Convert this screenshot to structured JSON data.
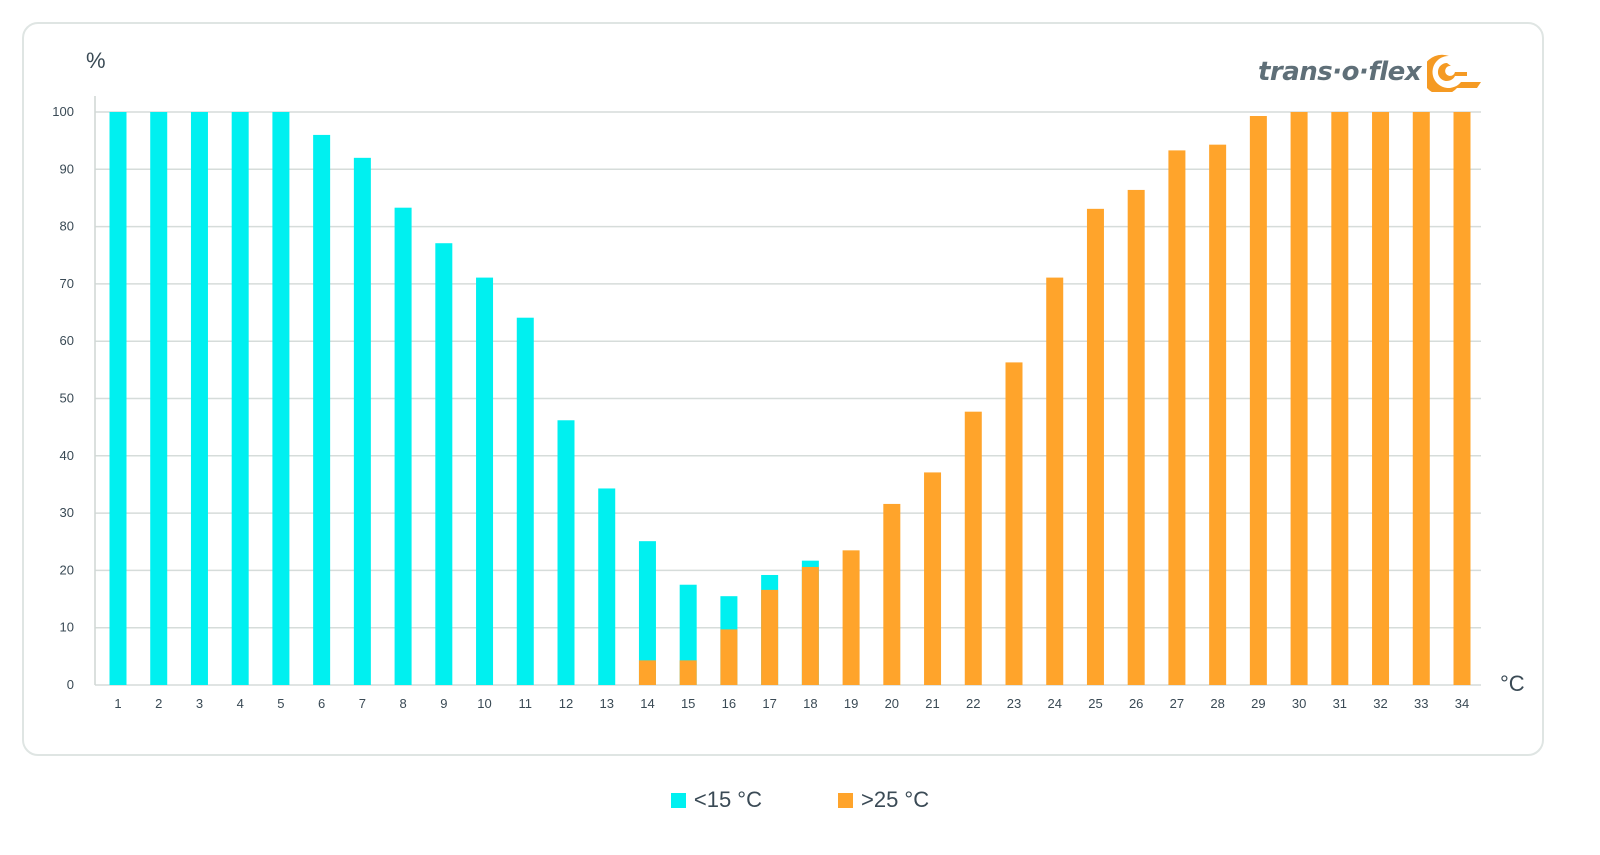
{
  "chart_data": {
    "type": "bar",
    "title": "",
    "xlabel": "°C",
    "ylabel": "%",
    "ylim": [
      0,
      100
    ],
    "yticks": [
      0,
      10,
      20,
      30,
      40,
      50,
      60,
      70,
      80,
      90,
      100
    ],
    "categories": [
      "1",
      "2",
      "3",
      "4",
      "5",
      "6",
      "7",
      "8",
      "9",
      "10",
      "11",
      "12",
      "13",
      "14",
      "15",
      "16",
      "17",
      "18",
      "19",
      "20",
      "21",
      "22",
      "23",
      "24",
      "25",
      "26",
      "27",
      "28",
      "29",
      "30",
      "31",
      "32",
      "33",
      "34"
    ],
    "series": [
      {
        "name": "<15 °C",
        "color": "#00f0f0",
        "values": [
          100,
          100,
          100,
          100,
          100,
          96,
          92,
          83.3,
          77.1,
          71.1,
          64.1,
          46.2,
          34.3,
          25.1,
          17.5,
          15.5,
          19.2,
          21.7,
          0,
          0,
          0,
          0,
          0,
          0,
          0,
          0,
          0,
          0,
          0,
          0,
          0,
          0,
          0,
          0
        ]
      },
      {
        "name": ">25 °C",
        "color": "#ffa42b",
        "values": [
          0,
          0,
          0,
          0,
          0,
          0,
          0,
          0,
          0,
          0,
          0,
          0,
          0,
          4.3,
          4.3,
          9.7,
          16.6,
          20.6,
          23.5,
          31.6,
          37.1,
          47.7,
          56.3,
          71.1,
          83.1,
          86.4,
          93.3,
          94.3,
          99.3,
          100,
          100,
          100,
          100,
          100
        ]
      }
    ],
    "grid": true,
    "legend_position": "bottom"
  },
  "labels": {
    "y_unit": "%",
    "x_unit": "°C"
  },
  "logo": {
    "text": "trans·o·flex",
    "color": "#f59a23"
  },
  "legend": [
    {
      "label": "<15 °C",
      "color": "#00f0f0"
    },
    {
      "label": ">25 °C",
      "color": "#ffa42b"
    }
  ]
}
